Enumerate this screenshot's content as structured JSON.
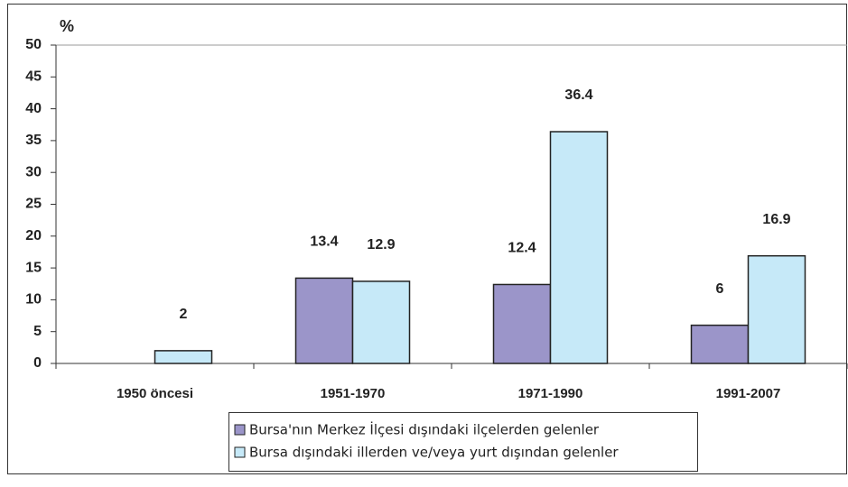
{
  "chart_data": {
    "type": "bar",
    "y_label": "%",
    "categories": [
      "1950 öncesi",
      "1951-1970",
      "1971-1990",
      "1991-2007"
    ],
    "series": [
      {
        "name": "Bursa'nın Merkez İlçesi dışındaki ilçelerden gelenler",
        "color": "#9b95c9",
        "values": [
          null,
          13.4,
          12.4,
          6
        ]
      },
      {
        "name": "Bursa dışındaki illerden ve/veya yurt dışından gelenler",
        "color": "#c6e9f8",
        "values": [
          2,
          12.9,
          36.4,
          16.9
        ]
      }
    ],
    "ylim": [
      0,
      50
    ],
    "yticks": [
      0,
      5,
      10,
      15,
      20,
      25,
      30,
      35,
      40,
      45,
      50
    ],
    "legend": "bottom"
  }
}
